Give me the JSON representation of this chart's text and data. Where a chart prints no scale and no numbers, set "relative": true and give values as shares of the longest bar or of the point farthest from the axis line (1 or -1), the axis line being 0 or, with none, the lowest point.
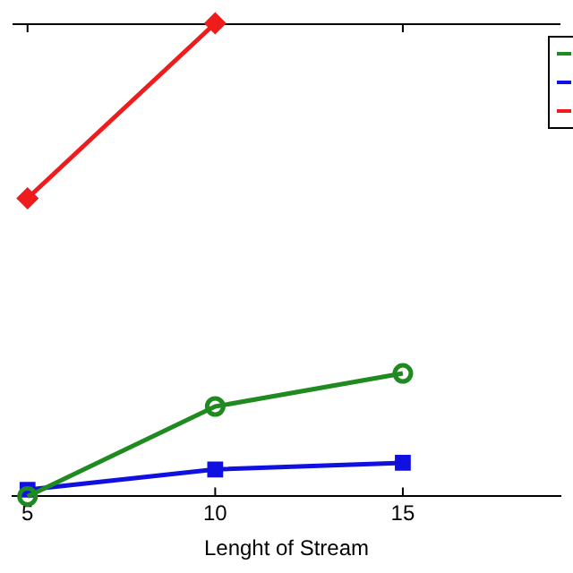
{
  "chart_data": {
    "type": "line",
    "xlabel": "Lenght of Stream",
    "relative": true,
    "xlim": [
      4.6,
      19.2
    ],
    "xticks": [
      5,
      10,
      15
    ],
    "grid": false,
    "series": [
      {
        "color": "#1f8a1f",
        "marker": "circle",
        "x": [
          5,
          10,
          15
        ],
        "values": [
          0.0,
          0.19,
          0.26
        ]
      },
      {
        "color": "#1010e0",
        "marker": "square",
        "x": [
          5,
          10,
          15
        ],
        "values": [
          0.014,
          0.057,
          0.071
        ]
      },
      {
        "color": "#ee1c1c",
        "marker": "diamond",
        "x": [
          5,
          10
        ],
        "values": [
          0.63,
          1.0
        ]
      }
    ]
  }
}
